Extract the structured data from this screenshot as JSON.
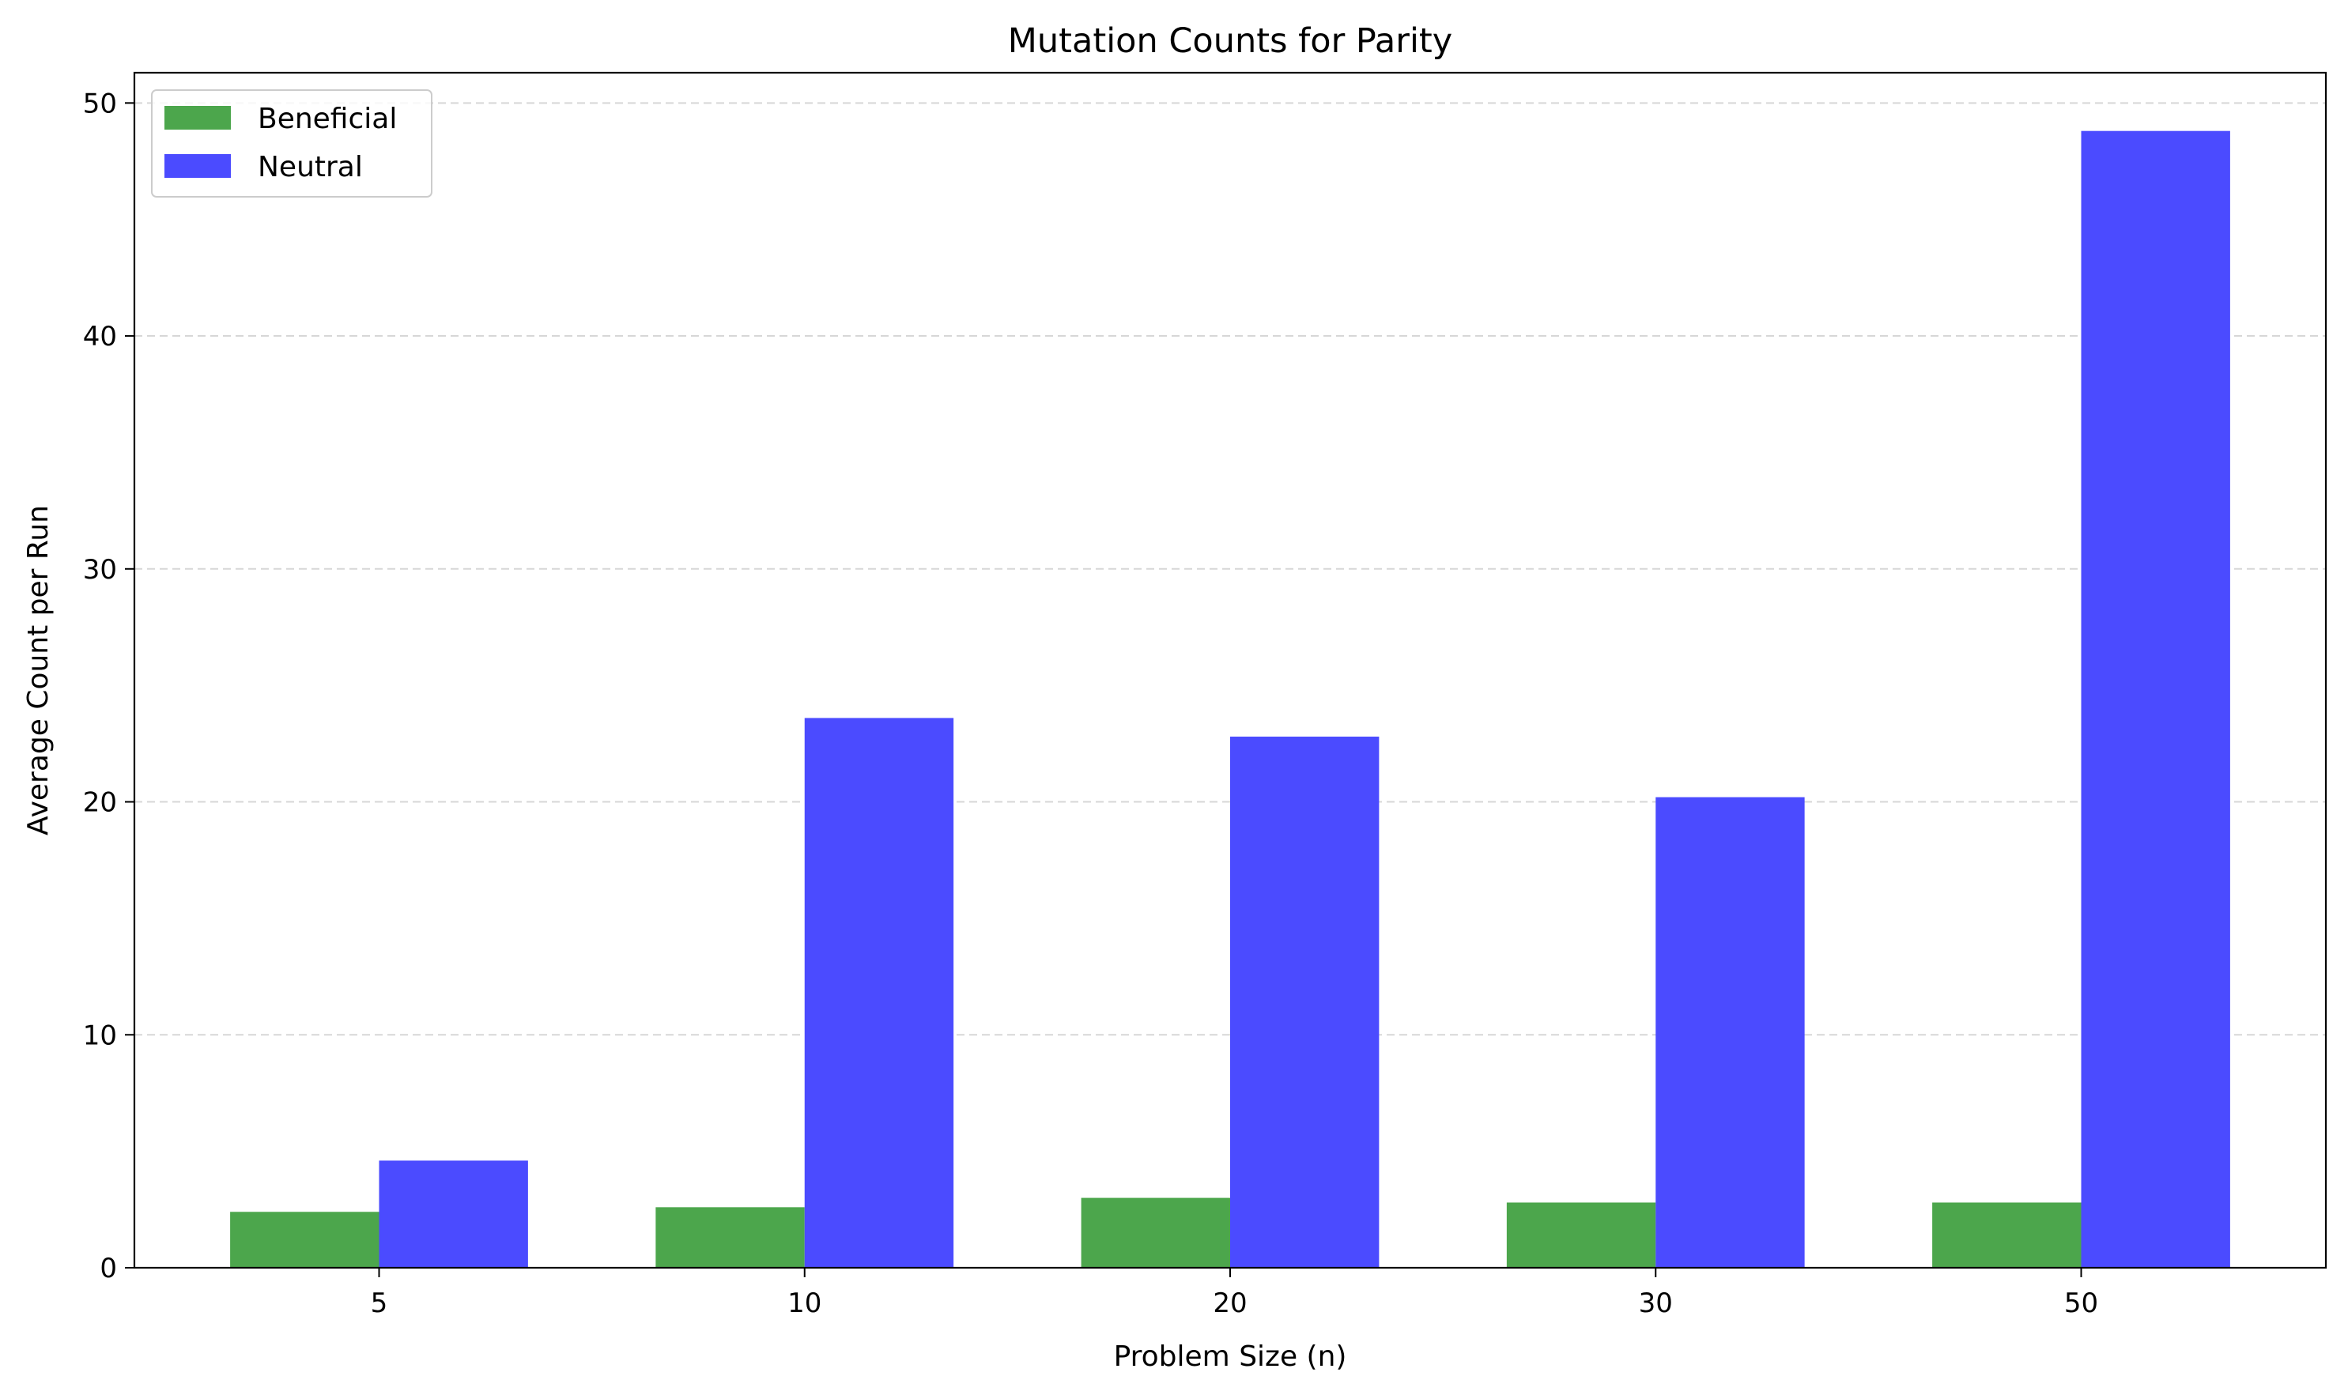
{
  "chart_data": {
    "type": "bar",
    "title": "Mutation Counts for Parity",
    "xlabel": "Problem Size (n)",
    "ylabel": "Average Count per Run",
    "categories": [
      "5",
      "10",
      "20",
      "30",
      "50"
    ],
    "series": [
      {
        "name": "Beneficial",
        "color": "#4ca64c",
        "values": [
          2.4,
          2.6,
          3.0,
          2.8,
          2.8
        ]
      },
      {
        "name": "Neutral",
        "color": "#4b4bff",
        "values": [
          4.6,
          23.6,
          22.8,
          20.2,
          48.8
        ]
      }
    ],
    "ylim": [
      0,
      51.3
    ],
    "yticks": [
      0,
      10,
      20,
      30,
      40,
      50
    ],
    "grid": "horizontal-dashed",
    "legend_position": "top-left"
  }
}
